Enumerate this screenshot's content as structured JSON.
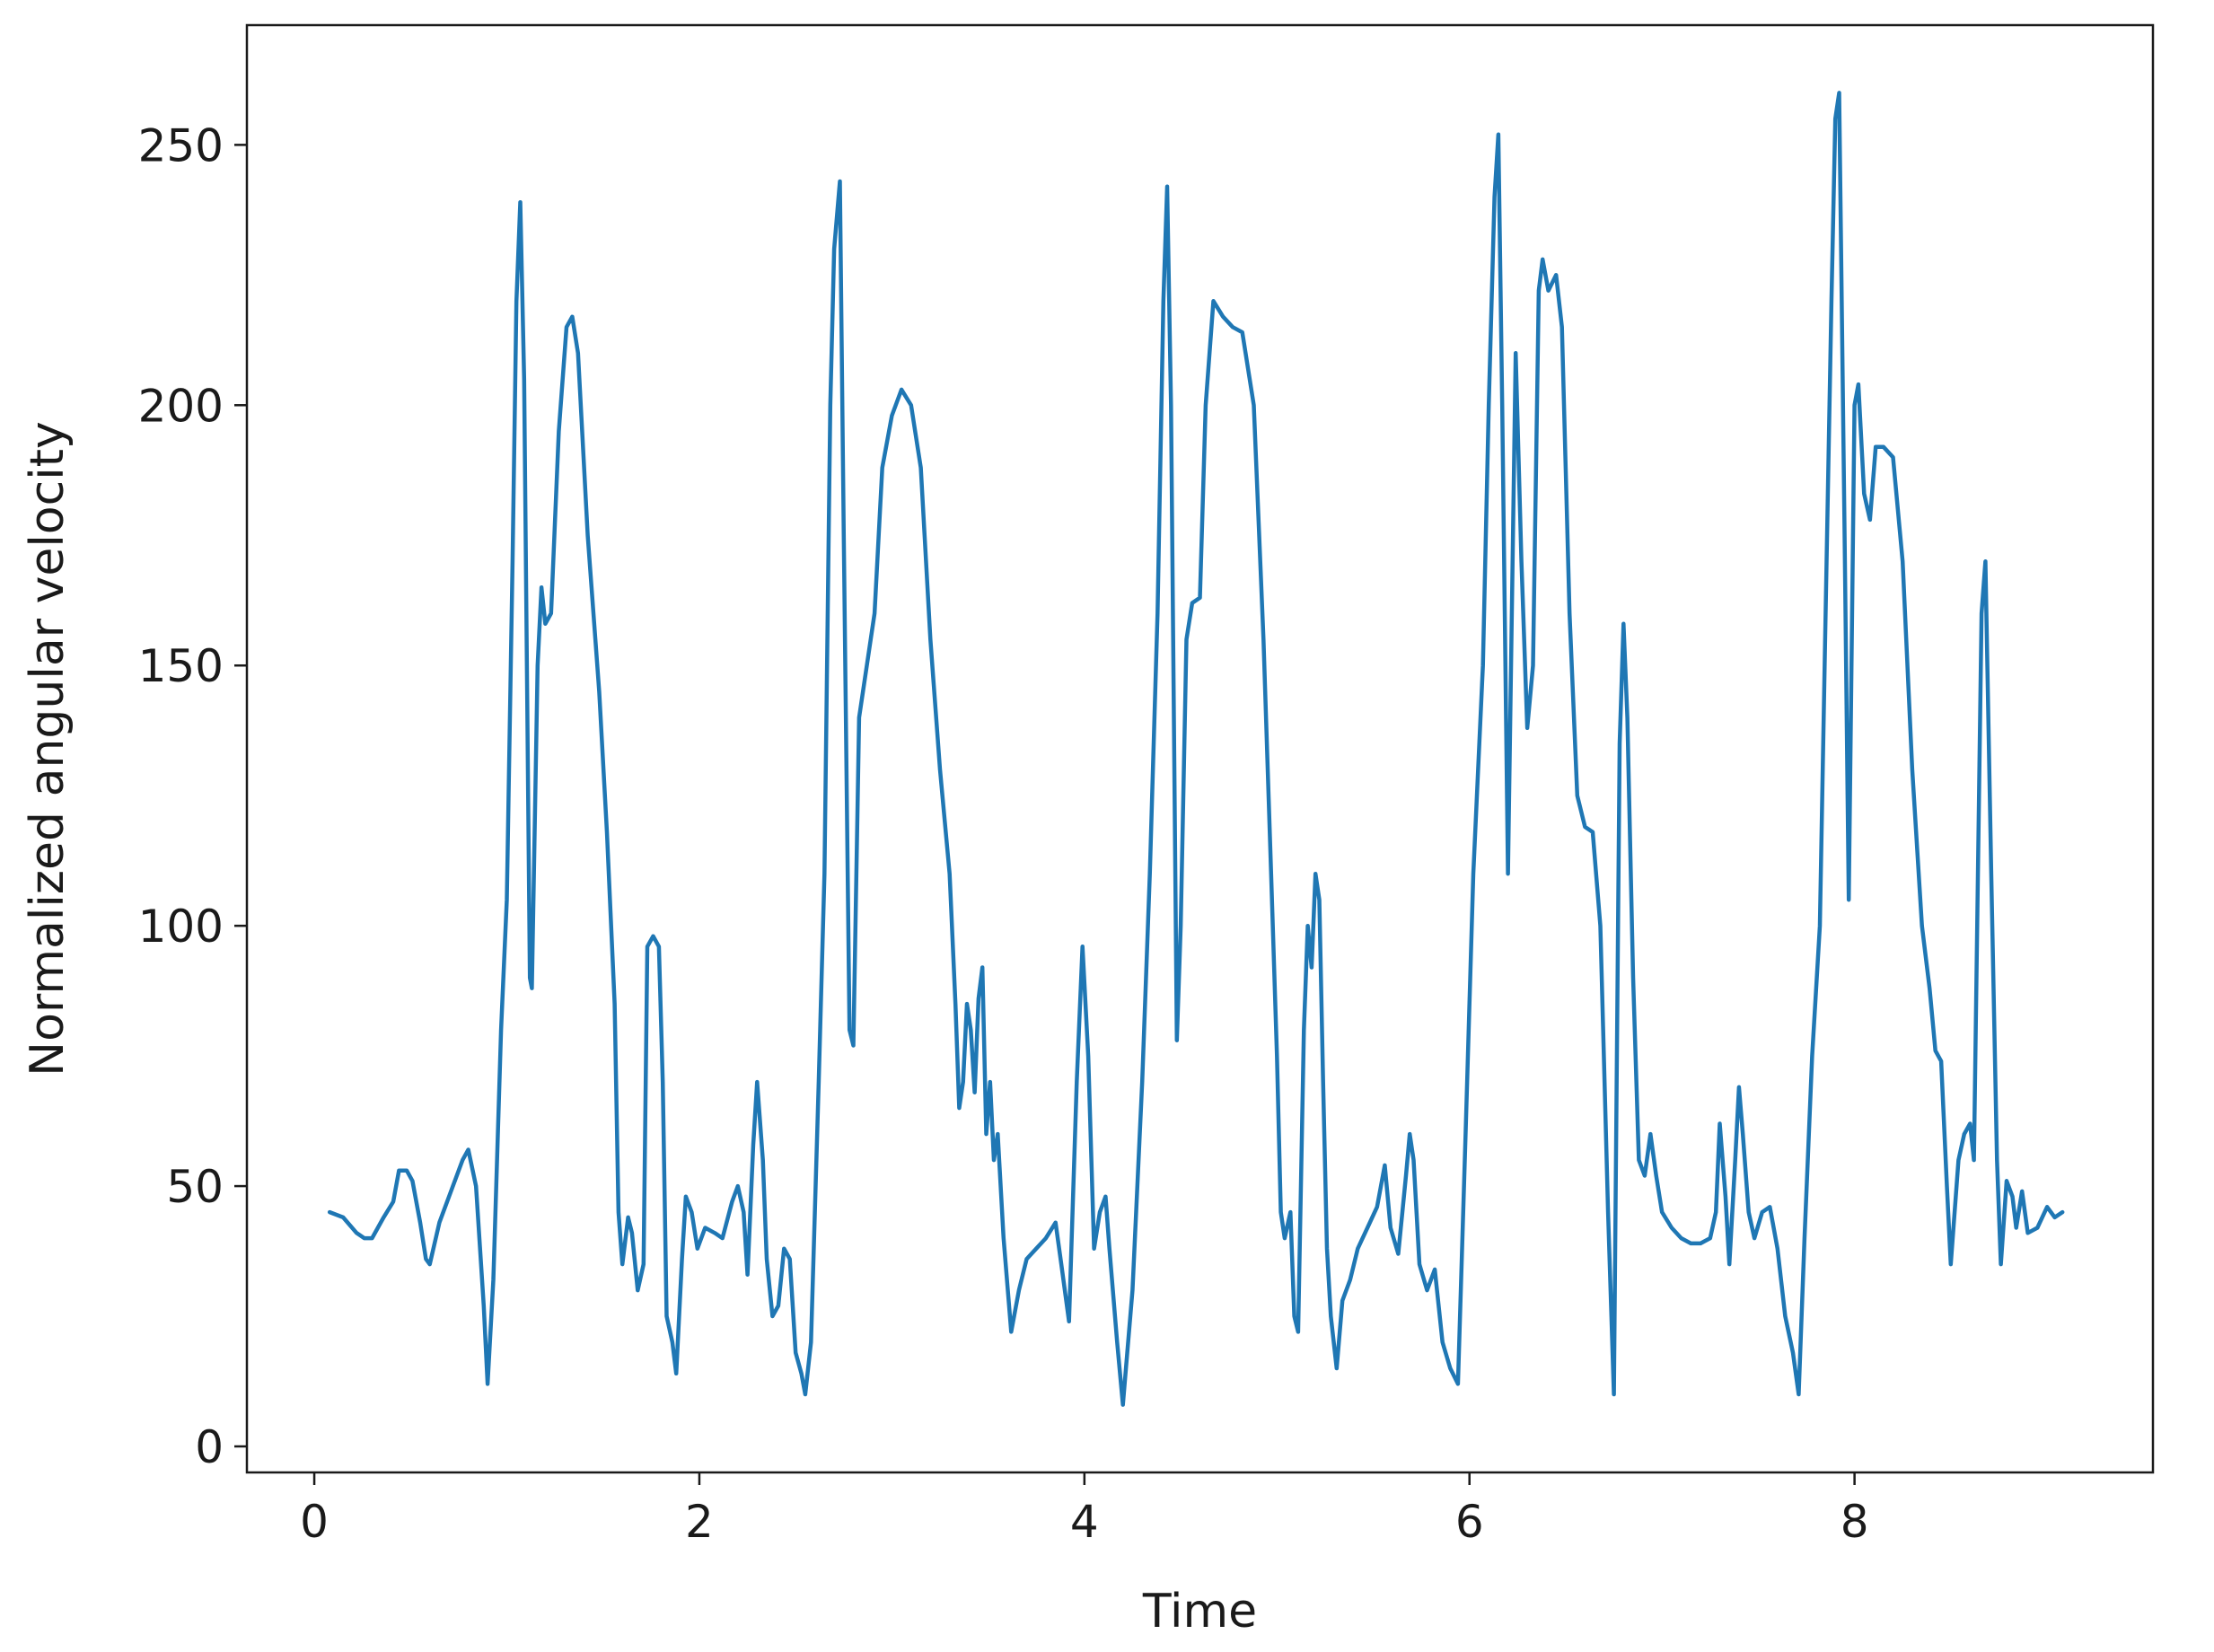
{
  "chart_data": {
    "type": "line",
    "title": "",
    "xlabel": "Time",
    "ylabel": "Normalized angular velocity",
    "xlim": [
      -0.35,
      9.55
    ],
    "ylim": [
      -5,
      273
    ],
    "xticks": [
      0,
      2,
      4,
      6,
      8
    ],
    "yticks": [
      0,
      50,
      100,
      150,
      200,
      250
    ],
    "grid": false,
    "legend": "none",
    "series": [
      {
        "color": "#1f77b4",
        "points": [
          [
            0.08,
            45
          ],
          [
            0.15,
            44
          ],
          [
            0.22,
            41
          ],
          [
            0.26,
            40
          ],
          [
            0.3,
            40
          ],
          [
            0.36,
            44
          ],
          [
            0.41,
            47
          ],
          [
            0.44,
            53
          ],
          [
            0.48,
            53
          ],
          [
            0.51,
            51
          ],
          [
            0.55,
            43
          ],
          [
            0.58,
            36
          ],
          [
            0.6,
            35
          ],
          [
            0.65,
            43
          ],
          [
            0.71,
            49
          ],
          [
            0.77,
            55
          ],
          [
            0.8,
            57
          ],
          [
            0.84,
            50
          ],
          [
            0.88,
            27
          ],
          [
            0.9,
            12
          ],
          [
            0.93,
            32
          ],
          [
            0.97,
            80
          ],
          [
            1.0,
            105
          ],
          [
            1.03,
            170
          ],
          [
            1.05,
            220
          ],
          [
            1.07,
            239
          ],
          [
            1.09,
            205
          ],
          [
            1.12,
            90
          ],
          [
            1.13,
            88
          ],
          [
            1.16,
            150
          ],
          [
            1.18,
            165
          ],
          [
            1.2,
            158
          ],
          [
            1.23,
            160
          ],
          [
            1.27,
            195
          ],
          [
            1.31,
            215
          ],
          [
            1.34,
            217
          ],
          [
            1.37,
            210
          ],
          [
            1.42,
            175
          ],
          [
            1.48,
            145
          ],
          [
            1.52,
            118
          ],
          [
            1.56,
            85
          ],
          [
            1.58,
            45
          ],
          [
            1.6,
            35
          ],
          [
            1.63,
            44
          ],
          [
            1.65,
            41
          ],
          [
            1.68,
            30
          ],
          [
            1.71,
            35
          ],
          [
            1.73,
            96
          ],
          [
            1.76,
            98
          ],
          [
            1.79,
            96
          ],
          [
            1.81,
            70
          ],
          [
            1.83,
            25
          ],
          [
            1.86,
            20
          ],
          [
            1.88,
            14
          ],
          [
            1.91,
            36
          ],
          [
            1.93,
            48
          ],
          [
            1.96,
            45
          ],
          [
            1.99,
            38
          ],
          [
            2.03,
            42
          ],
          [
            2.08,
            41
          ],
          [
            2.12,
            40
          ],
          [
            2.17,
            47
          ],
          [
            2.2,
            50
          ],
          [
            2.23,
            45
          ],
          [
            2.25,
            33
          ],
          [
            2.28,
            58
          ],
          [
            2.3,
            70
          ],
          [
            2.33,
            55
          ],
          [
            2.35,
            36
          ],
          [
            2.38,
            25
          ],
          [
            2.41,
            27
          ],
          [
            2.44,
            38
          ],
          [
            2.47,
            36
          ],
          [
            2.5,
            18
          ],
          [
            2.53,
            14
          ],
          [
            2.55,
            10
          ],
          [
            2.58,
            20
          ],
          [
            2.62,
            70
          ],
          [
            2.65,
            110
          ],
          [
            2.68,
            200
          ],
          [
            2.7,
            230
          ],
          [
            2.73,
            243
          ],
          [
            2.75,
            175
          ],
          [
            2.78,
            80
          ],
          [
            2.8,
            77
          ],
          [
            2.83,
            140
          ],
          [
            2.87,
            150
          ],
          [
            2.91,
            160
          ],
          [
            2.95,
            188
          ],
          [
            3.0,
            198
          ],
          [
            3.05,
            203
          ],
          [
            3.1,
            200
          ],
          [
            3.15,
            188
          ],
          [
            3.2,
            155
          ],
          [
            3.25,
            130
          ],
          [
            3.3,
            110
          ],
          [
            3.33,
            85
          ],
          [
            3.35,
            65
          ],
          [
            3.37,
            70
          ],
          [
            3.39,
            85
          ],
          [
            3.41,
            80
          ],
          [
            3.43,
            68
          ],
          [
            3.45,
            86
          ],
          [
            3.47,
            92
          ],
          [
            3.49,
            60
          ],
          [
            3.51,
            70
          ],
          [
            3.53,
            55
          ],
          [
            3.55,
            60
          ],
          [
            3.58,
            40
          ],
          [
            3.62,
            22
          ],
          [
            3.66,
            30
          ],
          [
            3.7,
            36
          ],
          [
            3.75,
            38
          ],
          [
            3.8,
            40
          ],
          [
            3.85,
            43
          ],
          [
            3.88,
            35
          ],
          [
            3.92,
            24
          ],
          [
            3.96,
            70
          ],
          [
            3.99,
            96
          ],
          [
            4.02,
            75
          ],
          [
            4.05,
            38
          ],
          [
            4.08,
            45
          ],
          [
            4.11,
            48
          ],
          [
            4.13,
            38
          ],
          [
            4.17,
            20
          ],
          [
            4.2,
            8
          ],
          [
            4.25,
            30
          ],
          [
            4.3,
            70
          ],
          [
            4.34,
            110
          ],
          [
            4.38,
            160
          ],
          [
            4.41,
            220
          ],
          [
            4.43,
            242
          ],
          [
            4.45,
            200
          ],
          [
            4.48,
            78
          ],
          [
            4.5,
            100
          ],
          [
            4.53,
            155
          ],
          [
            4.56,
            162
          ],
          [
            4.6,
            163
          ],
          [
            4.63,
            200
          ],
          [
            4.67,
            220
          ],
          [
            4.72,
            217
          ],
          [
            4.77,
            215
          ],
          [
            4.82,
            214
          ],
          [
            4.88,
            200
          ],
          [
            4.93,
            155
          ],
          [
            4.97,
            110
          ],
          [
            5.0,
            75
          ],
          [
            5.02,
            45
          ],
          [
            5.04,
            40
          ],
          [
            5.07,
            45
          ],
          [
            5.09,
            25
          ],
          [
            5.11,
            22
          ],
          [
            5.14,
            80
          ],
          [
            5.16,
            100
          ],
          [
            5.18,
            92
          ],
          [
            5.2,
            110
          ],
          [
            5.22,
            105
          ],
          [
            5.24,
            70
          ],
          [
            5.26,
            38
          ],
          [
            5.28,
            25
          ],
          [
            5.31,
            15
          ],
          [
            5.34,
            28
          ],
          [
            5.38,
            32
          ],
          [
            5.42,
            38
          ],
          [
            5.47,
            42
          ],
          [
            5.52,
            46
          ],
          [
            5.56,
            54
          ],
          [
            5.59,
            42
          ],
          [
            5.63,
            37
          ],
          [
            5.67,
            52
          ],
          [
            5.69,
            60
          ],
          [
            5.71,
            55
          ],
          [
            5.74,
            35
          ],
          [
            5.78,
            30
          ],
          [
            5.82,
            34
          ],
          [
            5.86,
            20
          ],
          [
            5.9,
            15
          ],
          [
            5.94,
            12
          ],
          [
            5.98,
            60
          ],
          [
            6.02,
            110
          ],
          [
            6.07,
            150
          ],
          [
            6.1,
            200
          ],
          [
            6.13,
            240
          ],
          [
            6.15,
            252
          ],
          [
            6.17,
            200
          ],
          [
            6.2,
            110
          ],
          [
            6.24,
            210
          ],
          [
            6.27,
            170
          ],
          [
            6.3,
            138
          ],
          [
            6.33,
            150
          ],
          [
            6.36,
            222
          ],
          [
            6.38,
            228
          ],
          [
            6.41,
            222
          ],
          [
            6.45,
            225
          ],
          [
            6.48,
            215
          ],
          [
            6.52,
            160
          ],
          [
            6.56,
            125
          ],
          [
            6.6,
            119
          ],
          [
            6.64,
            118
          ],
          [
            6.68,
            100
          ],
          [
            6.72,
            45
          ],
          [
            6.75,
            10
          ],
          [
            6.78,
            135
          ],
          [
            6.8,
            158
          ],
          [
            6.82,
            140
          ],
          [
            6.85,
            90
          ],
          [
            6.88,
            55
          ],
          [
            6.91,
            52
          ],
          [
            6.94,
            60
          ],
          [
            6.97,
            52
          ],
          [
            7.0,
            45
          ],
          [
            7.05,
            42
          ],
          [
            7.1,
            40
          ],
          [
            7.15,
            39
          ],
          [
            7.2,
            39
          ],
          [
            7.25,
            40
          ],
          [
            7.28,
            45
          ],
          [
            7.3,
            62
          ],
          [
            7.33,
            48
          ],
          [
            7.35,
            35
          ],
          [
            7.38,
            55
          ],
          [
            7.4,
            69
          ],
          [
            7.42,
            60
          ],
          [
            7.45,
            45
          ],
          [
            7.48,
            40
          ],
          [
            7.52,
            45
          ],
          [
            7.56,
            46
          ],
          [
            7.6,
            38
          ],
          [
            7.64,
            25
          ],
          [
            7.68,
            18
          ],
          [
            7.71,
            10
          ],
          [
            7.74,
            40
          ],
          [
            7.78,
            75
          ],
          [
            7.82,
            100
          ],
          [
            7.85,
            160
          ],
          [
            7.88,
            220
          ],
          [
            7.9,
            255
          ],
          [
            7.92,
            260
          ],
          [
            7.95,
            170
          ],
          [
            7.97,
            105
          ],
          [
            8.0,
            200
          ],
          [
            8.02,
            204
          ],
          [
            8.05,
            183
          ],
          [
            8.08,
            178
          ],
          [
            8.11,
            192
          ],
          [
            8.15,
            192
          ],
          [
            8.2,
            190
          ],
          [
            8.25,
            170
          ],
          [
            8.3,
            130
          ],
          [
            8.35,
            100
          ],
          [
            8.39,
            88
          ],
          [
            8.42,
            76
          ],
          [
            8.45,
            74
          ],
          [
            8.48,
            50
          ],
          [
            8.5,
            35
          ],
          [
            8.54,
            55
          ],
          [
            8.57,
            60
          ],
          [
            8.6,
            62
          ],
          [
            8.62,
            55
          ],
          [
            8.66,
            160
          ],
          [
            8.68,
            170
          ],
          [
            8.71,
            110
          ],
          [
            8.74,
            55
          ],
          [
            8.76,
            35
          ],
          [
            8.79,
            51
          ],
          [
            8.82,
            48
          ],
          [
            8.84,
            42
          ],
          [
            8.87,
            49
          ],
          [
            8.9,
            41
          ],
          [
            8.95,
            42
          ],
          [
            9.0,
            46
          ],
          [
            9.04,
            44
          ],
          [
            9.08,
            45
          ]
        ]
      }
    ]
  }
}
